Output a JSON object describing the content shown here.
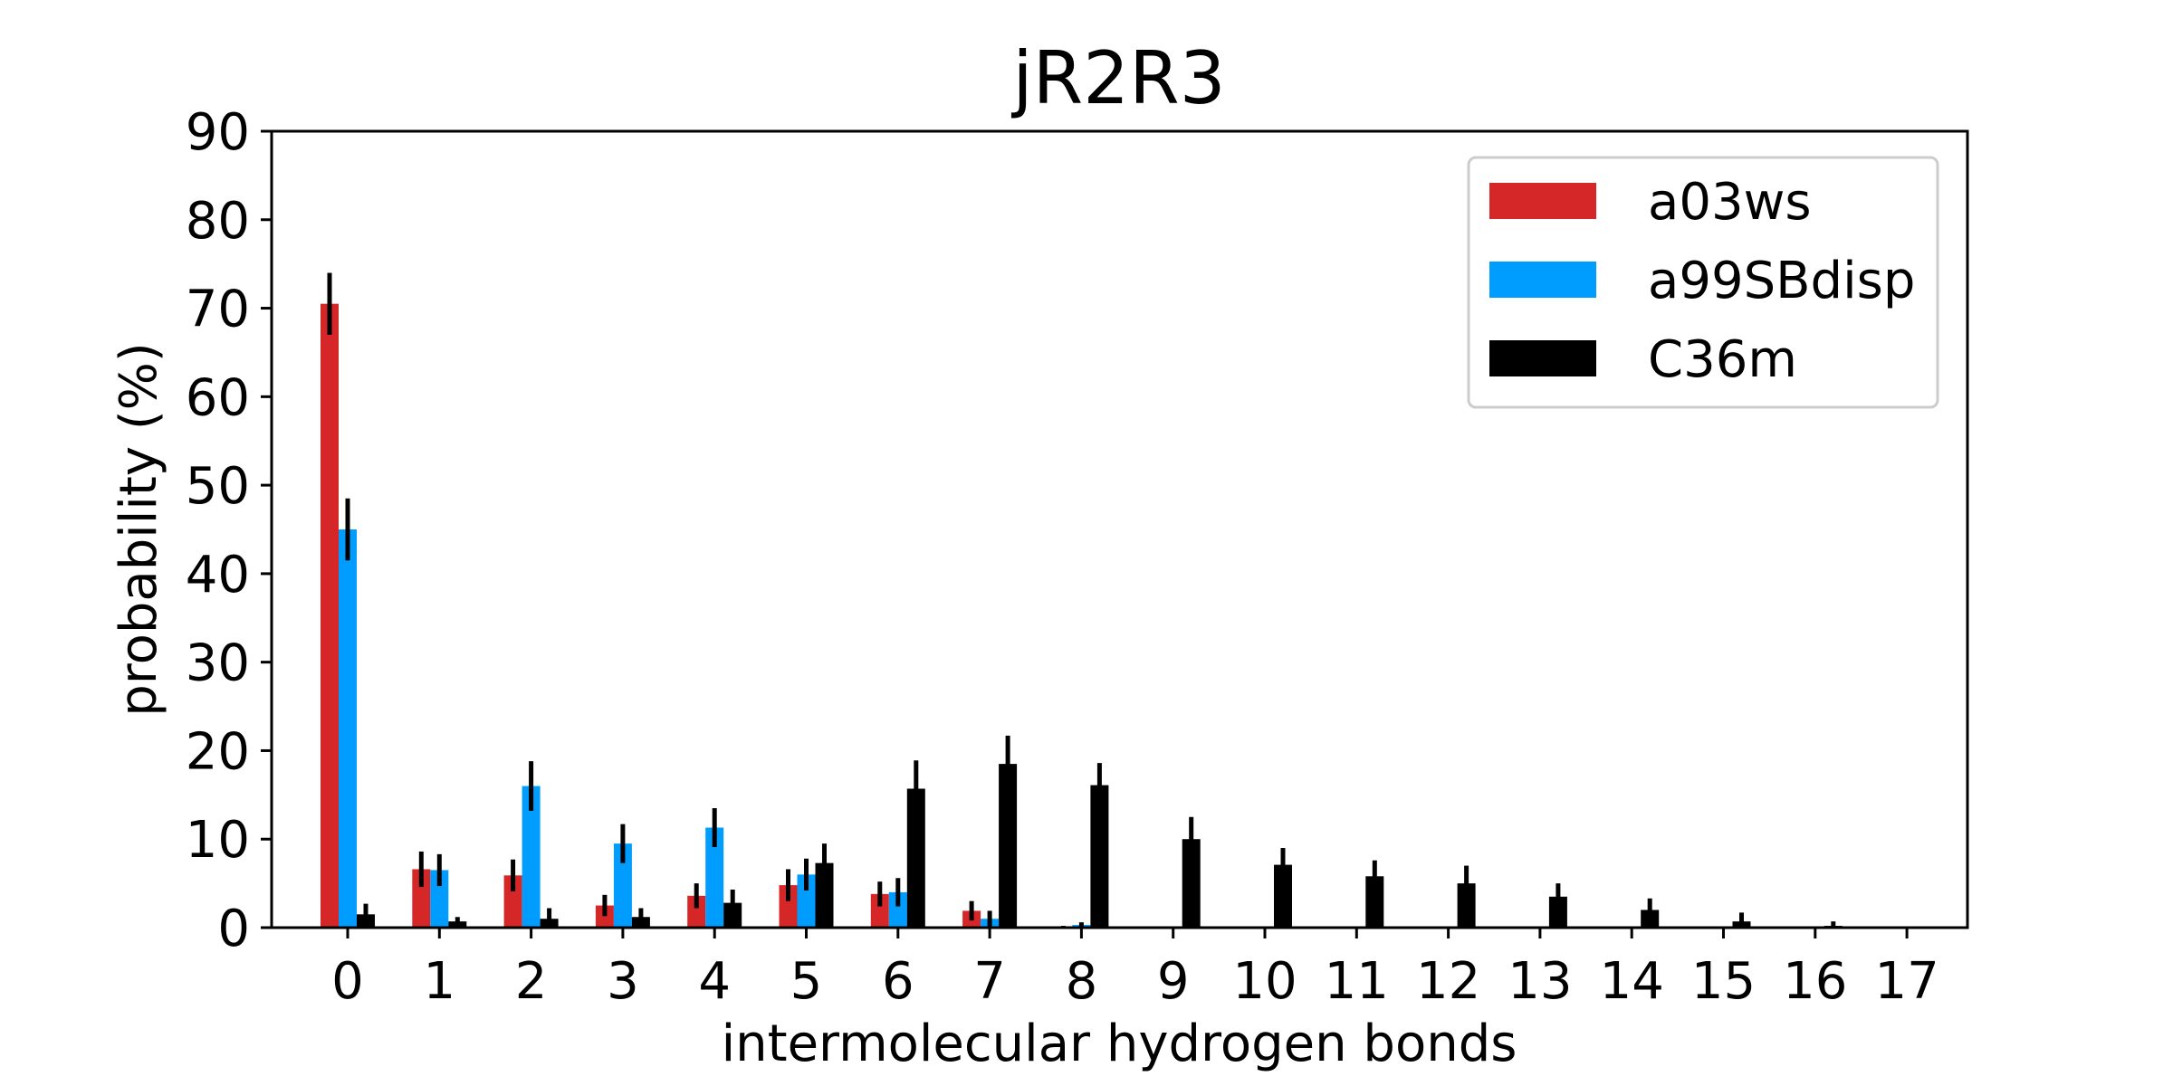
{
  "chart_data": {
    "type": "bar",
    "title": "jR2R3",
    "xlabel": "intermolecular hydrogen bonds",
    "ylabel": "probability (%)",
    "ylim": [
      0,
      90
    ],
    "yticks": [
      0,
      10,
      20,
      30,
      40,
      50,
      60,
      70,
      80,
      90
    ],
    "categories": [
      "0",
      "1",
      "2",
      "3",
      "4",
      "5",
      "6",
      "7",
      "8",
      "9",
      "10",
      "11",
      "12",
      "13",
      "14",
      "15",
      "16",
      "17"
    ],
    "legend_position": "top-right",
    "grid": false,
    "series": [
      {
        "name": "a03ws",
        "color": "#d62728",
        "values": [
          70.5,
          6.6,
          5.9,
          2.5,
          3.6,
          4.8,
          3.8,
          1.9,
          0.1,
          0.0,
          0.0,
          0.0,
          0.0,
          0.0,
          0.0,
          0.0,
          0.0,
          0.0
        ],
        "errors": [
          3.5,
          2.0,
          1.8,
          1.2,
          1.4,
          1.8,
          1.4,
          1.1,
          0.1,
          0.0,
          0.0,
          0.0,
          0.0,
          0.0,
          0.0,
          0.0,
          0.0,
          0.0
        ]
      },
      {
        "name": "a99SBdisp",
        "color": "#009dff",
        "values": [
          45.0,
          6.5,
          16.0,
          9.5,
          11.3,
          6.0,
          4.0,
          1.0,
          0.3,
          0.0,
          0.0,
          0.0,
          0.0,
          0.0,
          0.0,
          0.0,
          0.0,
          0.0
        ],
        "errors": [
          3.5,
          1.8,
          2.8,
          2.2,
          2.2,
          1.8,
          1.6,
          0.9,
          0.3,
          0.0,
          0.0,
          0.0,
          0.0,
          0.0,
          0.0,
          0.0,
          0.0,
          0.0
        ]
      },
      {
        "name": "C36m",
        "color": "#000000",
        "values": [
          1.5,
          0.7,
          1.0,
          1.2,
          2.8,
          7.3,
          15.7,
          18.5,
          16.1,
          10.0,
          7.1,
          5.8,
          5.0,
          3.5,
          2.0,
          0.7,
          0.2,
          0.0
        ],
        "errors": [
          1.2,
          0.5,
          1.2,
          1.0,
          1.5,
          2.2,
          3.2,
          3.2,
          2.5,
          2.5,
          1.9,
          1.8,
          2.0,
          1.5,
          1.3,
          1.0,
          0.5,
          0.1
        ]
      }
    ]
  }
}
